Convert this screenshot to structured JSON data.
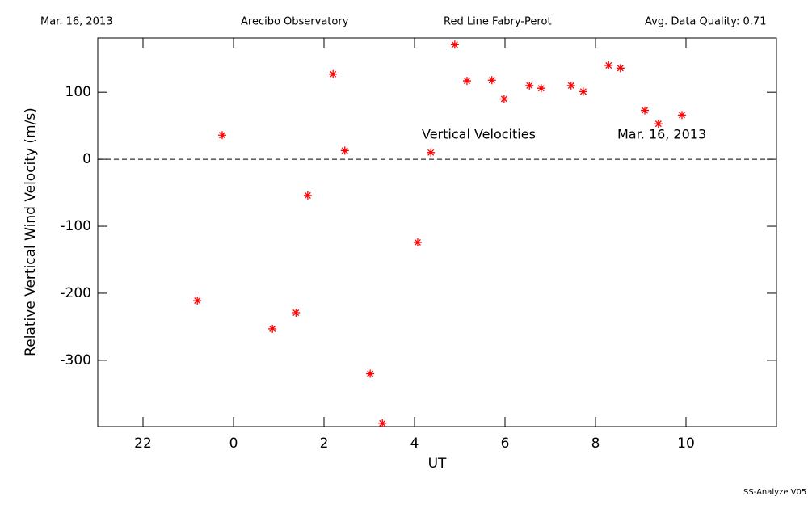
{
  "chart_data": {
    "type": "scatter",
    "header": [
      "Mar. 16, 2013",
      "Arecibo Observatory",
      "Red Line Fabry-Perot",
      "Avg. Data Quality: 0.71"
    ],
    "annotations": [
      "Vertical Velocities",
      "Mar. 16, 2013"
    ],
    "footer": "SS-Analyze V05",
    "x_label": "UT",
    "y_label": "Relative Vertical Wind Velocity (m/s)",
    "xlim": [
      21,
      36
    ],
    "xticks": [
      22,
      {
        "value": 24,
        "label": "0"
      },
      {
        "value": 26,
        "label": "2"
      },
      {
        "value": 28,
        "label": "4"
      },
      {
        "value": 30,
        "label": "6"
      },
      {
        "value": 32,
        "label": "8"
      },
      {
        "value": 34,
        "label": "10"
      }
    ],
    "ylim": [
      -399,
      181
    ],
    "yticks": [
      -300,
      -200,
      -100,
      0,
      100
    ],
    "zero_line": true,
    "series": [
      {
        "color": "#ff0000",
        "x": [
          23.2,
          23.75,
          24.86,
          25.38,
          25.64,
          26.2,
          26.46,
          27.02,
          27.29,
          28.07,
          28.36,
          28.89,
          29.16,
          29.71,
          29.98,
          30.54,
          30.8,
          31.46,
          31.73,
          32.29,
          32.55,
          33.09,
          33.39,
          33.91
        ],
        "values": [
          -211,
          36,
          -253,
          -229,
          -54,
          127,
          13,
          -320,
          -394,
          -124,
          10,
          171,
          117,
          118,
          90,
          110,
          106,
          110,
          101,
          140,
          136,
          73,
          53,
          66
        ]
      }
    ]
  }
}
